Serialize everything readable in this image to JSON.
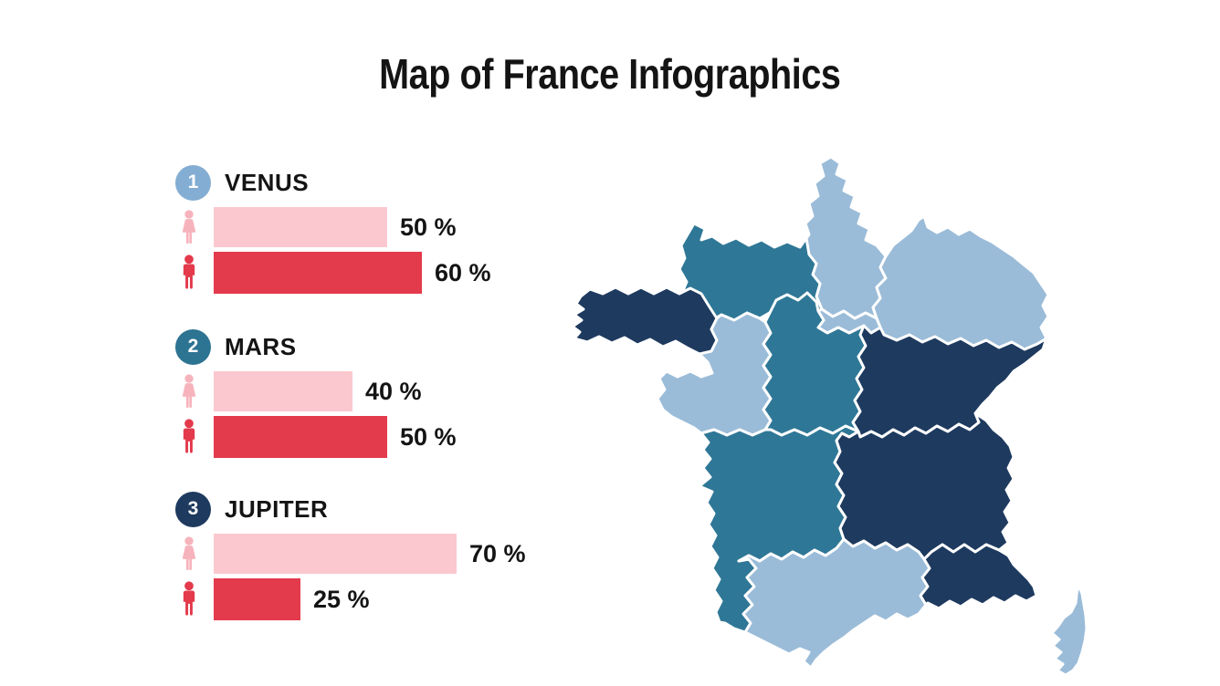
{
  "title": "Map of France Infographics",
  "colors": {
    "female_bar": "#fbc8cf",
    "male_bar": "#e33a4c",
    "female_icon": "#f7b3bc",
    "male_icon": "#e33a4c",
    "text": "#141414"
  },
  "sections": [
    {
      "number": "1",
      "name": "VENUS",
      "badge_color": "#83add2",
      "rows": [
        {
          "icon": "female",
          "value": 50,
          "label": "50 %"
        },
        {
          "icon": "male",
          "value": 60,
          "label": "60 %"
        }
      ]
    },
    {
      "number": "2",
      "name": "MARS",
      "badge_color": "#2d7392",
      "rows": [
        {
          "icon": "female",
          "value": 40,
          "label": "40 %"
        },
        {
          "icon": "male",
          "value": 50,
          "label": "50 %"
        }
      ]
    },
    {
      "number": "3",
      "name": "JUPITER",
      "badge_color": "#1e3a5f",
      "rows": [
        {
          "icon": "female",
          "value": 70,
          "label": "70 %"
        },
        {
          "icon": "male",
          "value": 25,
          "label": "25 %"
        }
      ]
    }
  ],
  "map": {
    "description": "France regions choropleth",
    "stroke": "#ffffff",
    "palette": {
      "light": "#9bbcd8",
      "medium": "#2f7796",
      "dark": "#1e3a5f"
    },
    "regions": [
      {
        "name": "Hauts-de-France",
        "shade": "light"
      },
      {
        "name": "Normandie",
        "shade": "medium"
      },
      {
        "name": "Grand Est",
        "shade": "light"
      },
      {
        "name": "Île-de-France",
        "shade": "light"
      },
      {
        "name": "Bretagne",
        "shade": "dark"
      },
      {
        "name": "Pays de la Loire",
        "shade": "light"
      },
      {
        "name": "Centre-Val de Loire",
        "shade": "medium"
      },
      {
        "name": "Bourgogne-Franche-Comté",
        "shade": "dark"
      },
      {
        "name": "Nouvelle-Aquitaine",
        "shade": "medium"
      },
      {
        "name": "Auvergne-Rhône-Alpes",
        "shade": "dark"
      },
      {
        "name": "Occitanie",
        "shade": "light"
      },
      {
        "name": "Provence-Alpes-Côte d'Azur",
        "shade": "dark"
      },
      {
        "name": "Corse",
        "shade": "light"
      }
    ]
  },
  "chart_data": {
    "type": "bar",
    "orientation": "horizontal",
    "title": "Map of France Infographics",
    "categories": [
      "VENUS",
      "MARS",
      "JUPITER"
    ],
    "series": [
      {
        "name": "female",
        "color": "#fbc8cf",
        "values": [
          50,
          40,
          70
        ]
      },
      {
        "name": "male",
        "color": "#e33a4c",
        "values": [
          60,
          50,
          25
        ]
      }
    ],
    "value_labels": [
      [
        "50 %",
        "60 %"
      ],
      [
        "40 %",
        "50 %"
      ],
      [
        "70 %",
        "25 %"
      ]
    ],
    "units": "%",
    "xlim": [
      0,
      100
    ],
    "grid": false,
    "legend": false
  }
}
